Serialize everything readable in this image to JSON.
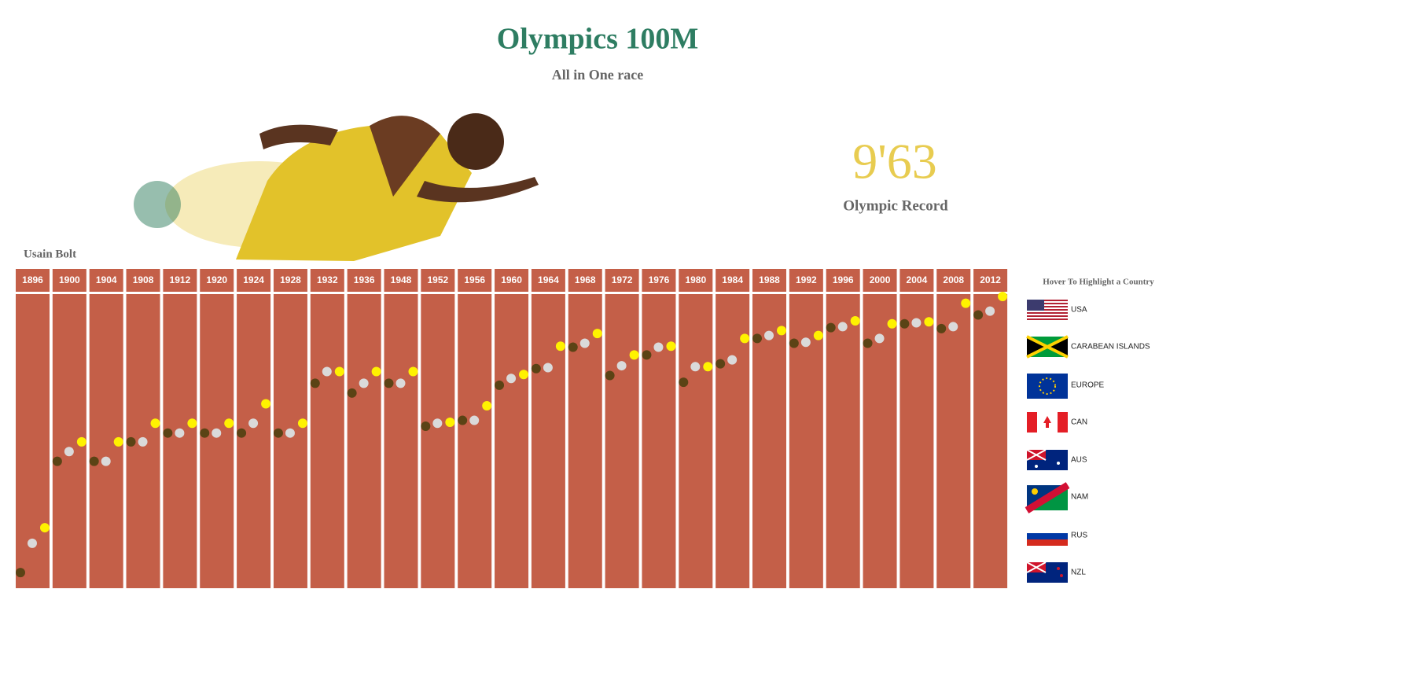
{
  "chart_data": {
    "type": "dot",
    "title": "Olympics 100M",
    "subtitle": "All in One race",
    "athlete": "Usain Bolt",
    "record": {
      "time": "9'63",
      "label": "Olympic Record"
    },
    "categories": [
      "1896",
      "1900",
      "1904",
      "1908",
      "1912",
      "1920",
      "1924",
      "1928",
      "1932",
      "1936",
      "1948",
      "1952",
      "1956",
      "1960",
      "1964",
      "1968",
      "1972",
      "1976",
      "1980",
      "1984",
      "1988",
      "1992",
      "1996",
      "2000",
      "2004",
      "2008",
      "2012"
    ],
    "ylim": [
      12.62,
      9.59
    ],
    "track_color": "#c45f48",
    "series": [
      {
        "color": "#5b4315",
        "values": [
          12.46,
          11.32,
          11.32,
          11.12,
          11.03,
          11.03,
          11.03,
          11.03,
          10.52,
          10.62,
          10.52,
          10.96,
          10.9,
          10.54,
          10.37,
          10.15,
          10.44,
          10.23,
          10.51,
          10.32,
          10.06,
          10.11,
          9.95,
          10.11,
          9.91,
          9.96,
          9.82
        ]
      },
      {
        "color": "#dadada",
        "values": [
          12.16,
          11.22,
          11.32,
          11.12,
          11.03,
          11.03,
          10.93,
          11.03,
          10.4,
          10.52,
          10.52,
          10.93,
          10.9,
          10.47,
          10.36,
          10.11,
          10.34,
          10.15,
          10.35,
          10.28,
          10.03,
          10.1,
          9.94,
          10.06,
          9.9,
          9.94,
          9.78
        ]
      },
      {
        "color": "#fff200",
        "values": [
          12.0,
          11.12,
          11.12,
          10.93,
          10.93,
          10.93,
          10.73,
          10.93,
          10.4,
          10.4,
          10.4,
          10.92,
          10.75,
          10.43,
          10.14,
          10.01,
          10.23,
          10.14,
          10.35,
          10.06,
          9.98,
          10.03,
          9.88,
          9.91,
          9.89,
          9.7,
          9.63
        ]
      }
    ],
    "country_legend": {
      "title": "Hover To Highlight a Country",
      "items": [
        "USA",
        "CARABEAN ISLANDS",
        "EUROPE",
        "CAN",
        "AUS",
        "NAM",
        "RUS",
        "NZL"
      ]
    }
  }
}
